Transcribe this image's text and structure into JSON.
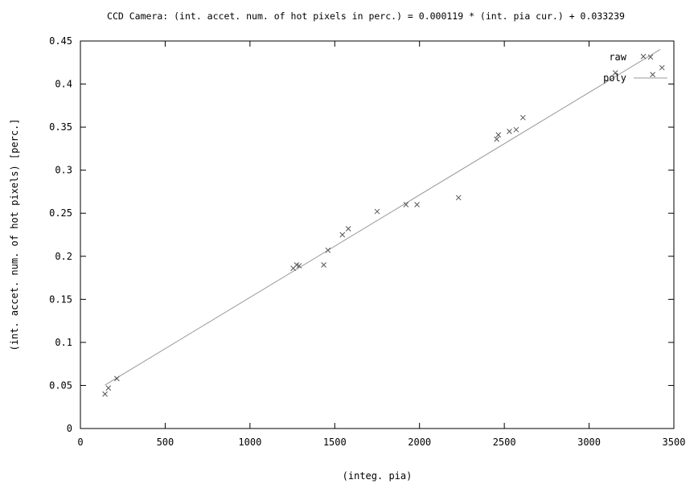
{
  "chart_data": {
    "type": "scatter",
    "title": "CCD Camera: (int. accet. num. of hot pixels in perc.) = 0.000119 * (int. pia cur.) + 0.033239",
    "xlabel": "(integ. pia)",
    "ylabel": "(int. accet. num. of hot pixels) [perc.]",
    "xlim": [
      0,
      3500
    ],
    "ylim": [
      0,
      0.45
    ],
    "x_ticks": [
      0,
      500,
      1000,
      1500,
      2000,
      2500,
      3000,
      3500
    ],
    "x_tick_labels": [
      "0",
      "500",
      "1000",
      "1500",
      "2000",
      "2500",
      "3000",
      "3500"
    ],
    "y_ticks": [
      0,
      0.05,
      0.1,
      0.15,
      0.2,
      0.25,
      0.3,
      0.35,
      0.4,
      0.45
    ],
    "y_tick_labels": [
      "0",
      "0.05",
      "0.1",
      "0.15",
      "0.2",
      "0.25",
      "0.3",
      "0.35",
      "0.4",
      "0.45"
    ],
    "grid": false,
    "legend_position": "top-right",
    "series": [
      {
        "name": "raw",
        "style": "points",
        "marker": "x",
        "color": "#555555",
        "points": [
          [
            145,
            0.04
          ],
          [
            165,
            0.047
          ],
          [
            215,
            0.058
          ],
          [
            1255,
            0.186
          ],
          [
            1275,
            0.19
          ],
          [
            1290,
            0.189
          ],
          [
            1435,
            0.19
          ],
          [
            1460,
            0.207
          ],
          [
            1545,
            0.225
          ],
          [
            1580,
            0.232
          ],
          [
            1750,
            0.252
          ],
          [
            1920,
            0.26
          ],
          [
            1985,
            0.26
          ],
          [
            2230,
            0.268
          ],
          [
            2455,
            0.336
          ],
          [
            2465,
            0.341
          ],
          [
            2530,
            0.345
          ],
          [
            2570,
            0.347
          ],
          [
            2610,
            0.361
          ],
          [
            3155,
            0.413
          ],
          [
            3320,
            0.432
          ],
          [
            3375,
            0.411
          ],
          [
            3430,
            0.419
          ]
        ]
      },
      {
        "name": "poly",
        "style": "line",
        "color": "#999999",
        "points": [
          [
            145,
            0.050495
          ],
          [
            3420,
            0.440219
          ]
        ]
      }
    ]
  }
}
